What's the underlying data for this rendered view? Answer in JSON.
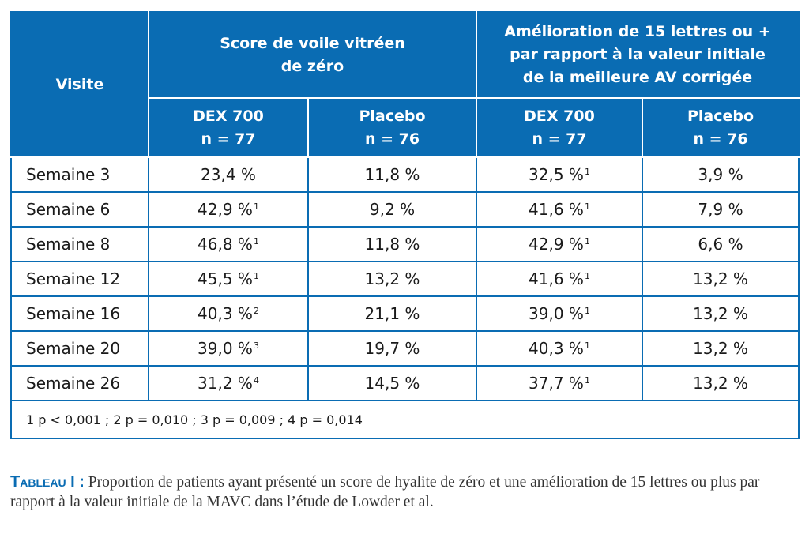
{
  "table": {
    "header": {
      "visit": "Visite",
      "group1": [
        "Score de voile vitréen",
        "de zéro"
      ],
      "group2": [
        "Amélioration de 15 lettres ou +",
        "par rapport à la valeur initiale",
        "de la meilleure AV corrigée"
      ],
      "sub_columns": [
        [
          "DEX 700",
          "n = 77"
        ],
        [
          "Placebo",
          "n = 76"
        ],
        [
          "DEX 700",
          "n = 77"
        ],
        [
          "Placebo",
          "n = 76"
        ]
      ]
    },
    "rows": [
      {
        "visit": "Semaine 3",
        "cells": [
          {
            "v": "23,4 %",
            "s": ""
          },
          {
            "v": "11,8 %",
            "s": ""
          },
          {
            "v": "32,5 %",
            "s": "1"
          },
          {
            "v": "3,9 %",
            "s": ""
          }
        ]
      },
      {
        "visit": "Semaine 6",
        "cells": [
          {
            "v": "42,9 %",
            "s": "1"
          },
          {
            "v": "9,2 %",
            "s": ""
          },
          {
            "v": "41,6 %",
            "s": "1"
          },
          {
            "v": "7,9 %",
            "s": ""
          }
        ]
      },
      {
        "visit": "Semaine 8",
        "cells": [
          {
            "v": "46,8 %",
            "s": "1"
          },
          {
            "v": "11,8 %",
            "s": ""
          },
          {
            "v": "42,9 %",
            "s": "1"
          },
          {
            "v": "6,6 %",
            "s": ""
          }
        ]
      },
      {
        "visit": "Semaine 12",
        "cells": [
          {
            "v": "45,5 %",
            "s": "1"
          },
          {
            "v": "13,2 %",
            "s": ""
          },
          {
            "v": "41,6 %",
            "s": "1"
          },
          {
            "v": "13,2 %",
            "s": ""
          }
        ]
      },
      {
        "visit": "Semaine 16",
        "cells": [
          {
            "v": "40,3 %",
            "s": "2"
          },
          {
            "v": "21,1 %",
            "s": ""
          },
          {
            "v": "39,0 %",
            "s": "1"
          },
          {
            "v": "13,2 %",
            "s": ""
          }
        ]
      },
      {
        "visit": "Semaine 20",
        "cells": [
          {
            "v": "39,0 %",
            "s": "3"
          },
          {
            "v": "19,7 %",
            "s": ""
          },
          {
            "v": "40,3 %",
            "s": "1"
          },
          {
            "v": "13,2 %",
            "s": ""
          }
        ]
      },
      {
        "visit": "Semaine 26",
        "cells": [
          {
            "v": "31,2 %",
            "s": "4"
          },
          {
            "v": "14,5 %",
            "s": ""
          },
          {
            "v": "37,7 %",
            "s": "1"
          },
          {
            "v": "13,2 %",
            "s": ""
          }
        ]
      }
    ],
    "footnote": "1 p < 0,001 ; 2 p = 0,010 ; 3 p = 0,009 ; 4 p = 0,014"
  },
  "caption": {
    "label": "Tableau I :",
    "text": " Proportion de patients ayant présenté un score de hyalite de zéro et une amélioration de 15 lettres ou plus par rapport à la valeur initiale de la MAVC dans l’étude de Lowder et al."
  },
  "colors": {
    "header_bg": "#0a6cb3",
    "header_text": "#ffffff",
    "border": "#0a6cb3",
    "caption_label": "#0a6cb3"
  }
}
